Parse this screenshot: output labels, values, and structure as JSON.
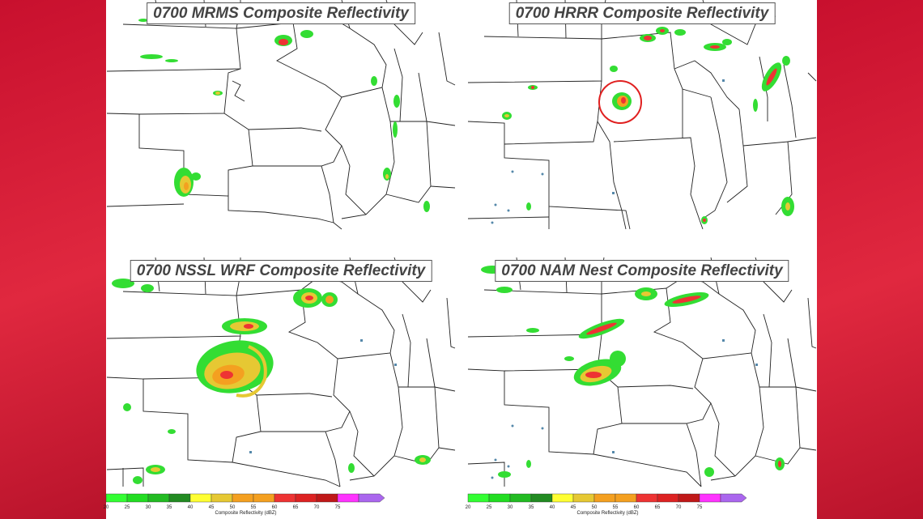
{
  "panels": [
    {
      "title": "0700 MRMS Composite Reflectivity"
    },
    {
      "title": "0700 HRRR Composite Reflectivity"
    },
    {
      "title": "0700 NSSL WRF Composite Reflectivity"
    },
    {
      "title": "0700 NAM Nest Composite Reflectivity"
    }
  ],
  "colorbar": {
    "label": "Composite Reflectivity (dBZ)",
    "ticks": [
      "20",
      "25",
      "30",
      "35",
      "40",
      "45",
      "50",
      "55",
      "60",
      "65",
      "70",
      "75"
    ],
    "colors": [
      "#33ff33",
      "#22dd22",
      "#22bb22",
      "#228b22",
      "#ffff33",
      "#e6c833",
      "#f4a020",
      "#f4a020",
      "#ee3333",
      "#dd2222",
      "#c01818",
      "#ff33ff",
      "#aa66ee"
    ]
  },
  "colors": {
    "background_red": "#d11e36",
    "highlight_circle": "#e02020"
  }
}
